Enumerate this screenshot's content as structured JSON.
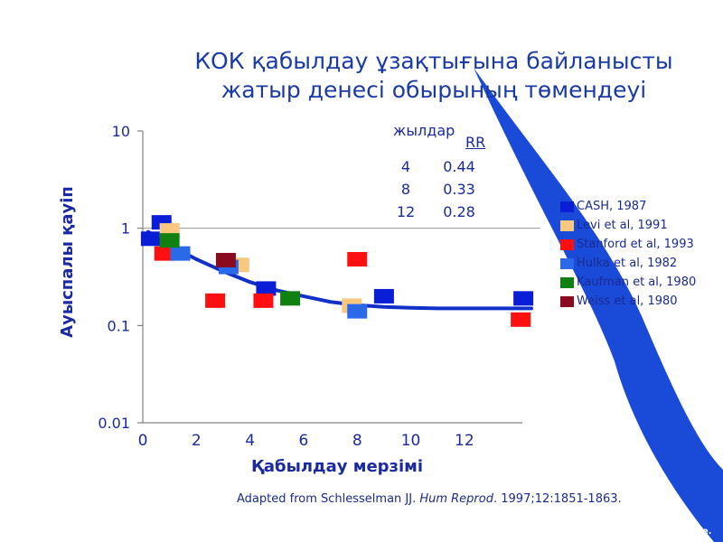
{
  "slide": {
    "title_line1": "КОК қабылдау ұзақтығына байланысты",
    "title_line2": "жатыр денесі обырының төмендеуі",
    "source_prefix": "Adapted from Schlesselman JJ. ",
    "source_journal": "Hum Reprod",
    "source_suffix": ". 1997;12:1851-1863.",
    "corner_text": "ononline."
  },
  "rr_table": {
    "header_years": "жылдар",
    "header_rr": "RR",
    "rows": [
      {
        "years": "4",
        "rr": "0.44"
      },
      {
        "years": "8",
        "rr": "0.33"
      },
      {
        "years": "12",
        "rr": "0.28"
      }
    ]
  },
  "chart_data": {
    "type": "scatter",
    "xlabel": "Қабылдау мерзімі",
    "ylabel": "Ауыспалы қауіп",
    "y_scale": "log",
    "xlim": [
      0,
      14.5
    ],
    "ylim": [
      0.01,
      10
    ],
    "x_ticks": [
      0,
      2,
      4,
      6,
      8,
      10,
      12
    ],
    "y_ticks": [
      {
        "value": 0.01,
        "label": "0.01"
      },
      {
        "value": 0.1,
        "label": "0.1"
      },
      {
        "value": 1,
        "label": "1"
      },
      {
        "value": 10,
        "label": "10"
      }
    ],
    "reference_line": 1,
    "legend_position": "right",
    "series": [
      {
        "name": "CASH, 1987",
        "color": "#0a1ed8",
        "points": [
          [
            0.3,
            0.78
          ],
          [
            0.7,
            1.15
          ],
          [
            4.6,
            0.24
          ],
          [
            9.0,
            0.2
          ],
          [
            14.2,
            0.19
          ]
        ]
      },
      {
        "name": "Levi et al, 1991",
        "color": "#f8c880",
        "points": [
          [
            1.0,
            0.95
          ],
          [
            3.6,
            0.42
          ],
          [
            7.8,
            0.16
          ]
        ]
      },
      {
        "name": "Stanford et al, 1993",
        "color": "#ff1010",
        "points": [
          [
            0.8,
            0.55
          ],
          [
            2.7,
            0.18
          ],
          [
            4.5,
            0.18
          ],
          [
            8.0,
            0.48
          ],
          [
            14.1,
            0.115
          ]
        ]
      },
      {
        "name": "Hulka et al, 1982",
        "color": "#2a6ae8",
        "points": [
          [
            1.4,
            0.55
          ],
          [
            3.2,
            0.4
          ],
          [
            8.0,
            0.14
          ]
        ]
      },
      {
        "name": "Kaufman et al, 1980",
        "color": "#108010",
        "points": [
          [
            1.0,
            0.75
          ],
          [
            5.5,
            0.19
          ]
        ]
      },
      {
        "name": "Weiss et al, 1980",
        "color": "#8a0a20",
        "points": [
          [
            3.1,
            0.47
          ]
        ]
      }
    ],
    "trend_line": {
      "color": "#1030c8",
      "points": [
        [
          0.2,
          0.92
        ],
        [
          1,
          0.67
        ],
        [
          2,
          0.48
        ],
        [
          3,
          0.36
        ],
        [
          4,
          0.28
        ],
        [
          5,
          0.23
        ],
        [
          6,
          0.2
        ],
        [
          7,
          0.175
        ],
        [
          8,
          0.162
        ],
        [
          9,
          0.155
        ],
        [
          10,
          0.152
        ],
        [
          11,
          0.15
        ],
        [
          12,
          0.15
        ],
        [
          13,
          0.15
        ],
        [
          14.5,
          0.15
        ]
      ]
    }
  }
}
